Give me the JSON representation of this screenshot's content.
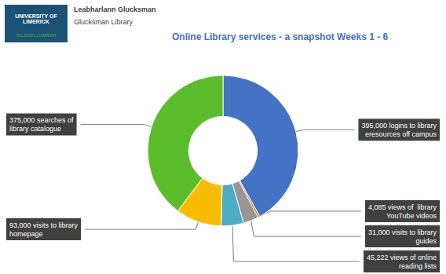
{
  "chart_data": {
    "type": "donut",
    "title": "Online Library services - a snapshot Weeks 1 - 6",
    "annotations": [
      "Leabharlann Glucksman",
      "Glucksman Library",
      "UNIVERSITY OF\nLIMERICK",
      "OLLSCOIL LUIMNIGH"
    ],
    "categories": [
      "395,000 logins to library\neresources off campus",
      "4,085 views of  library\nYouTube videos",
      "31,000 visits to library\nguides",
      "45,222 views of online\nreading lists",
      "93,000 visits to library\nhomepage",
      "375,000 searches of\nlibrary catalogue"
    ],
    "values": [
      395000,
      4085,
      31000,
      45222,
      93000,
      375000
    ],
    "colors": [
      "#4472C4",
      "#E36C09",
      "#969696",
      "#4BACC6",
      "#F9BD00",
      "#5BBD2C"
    ]
  }
}
